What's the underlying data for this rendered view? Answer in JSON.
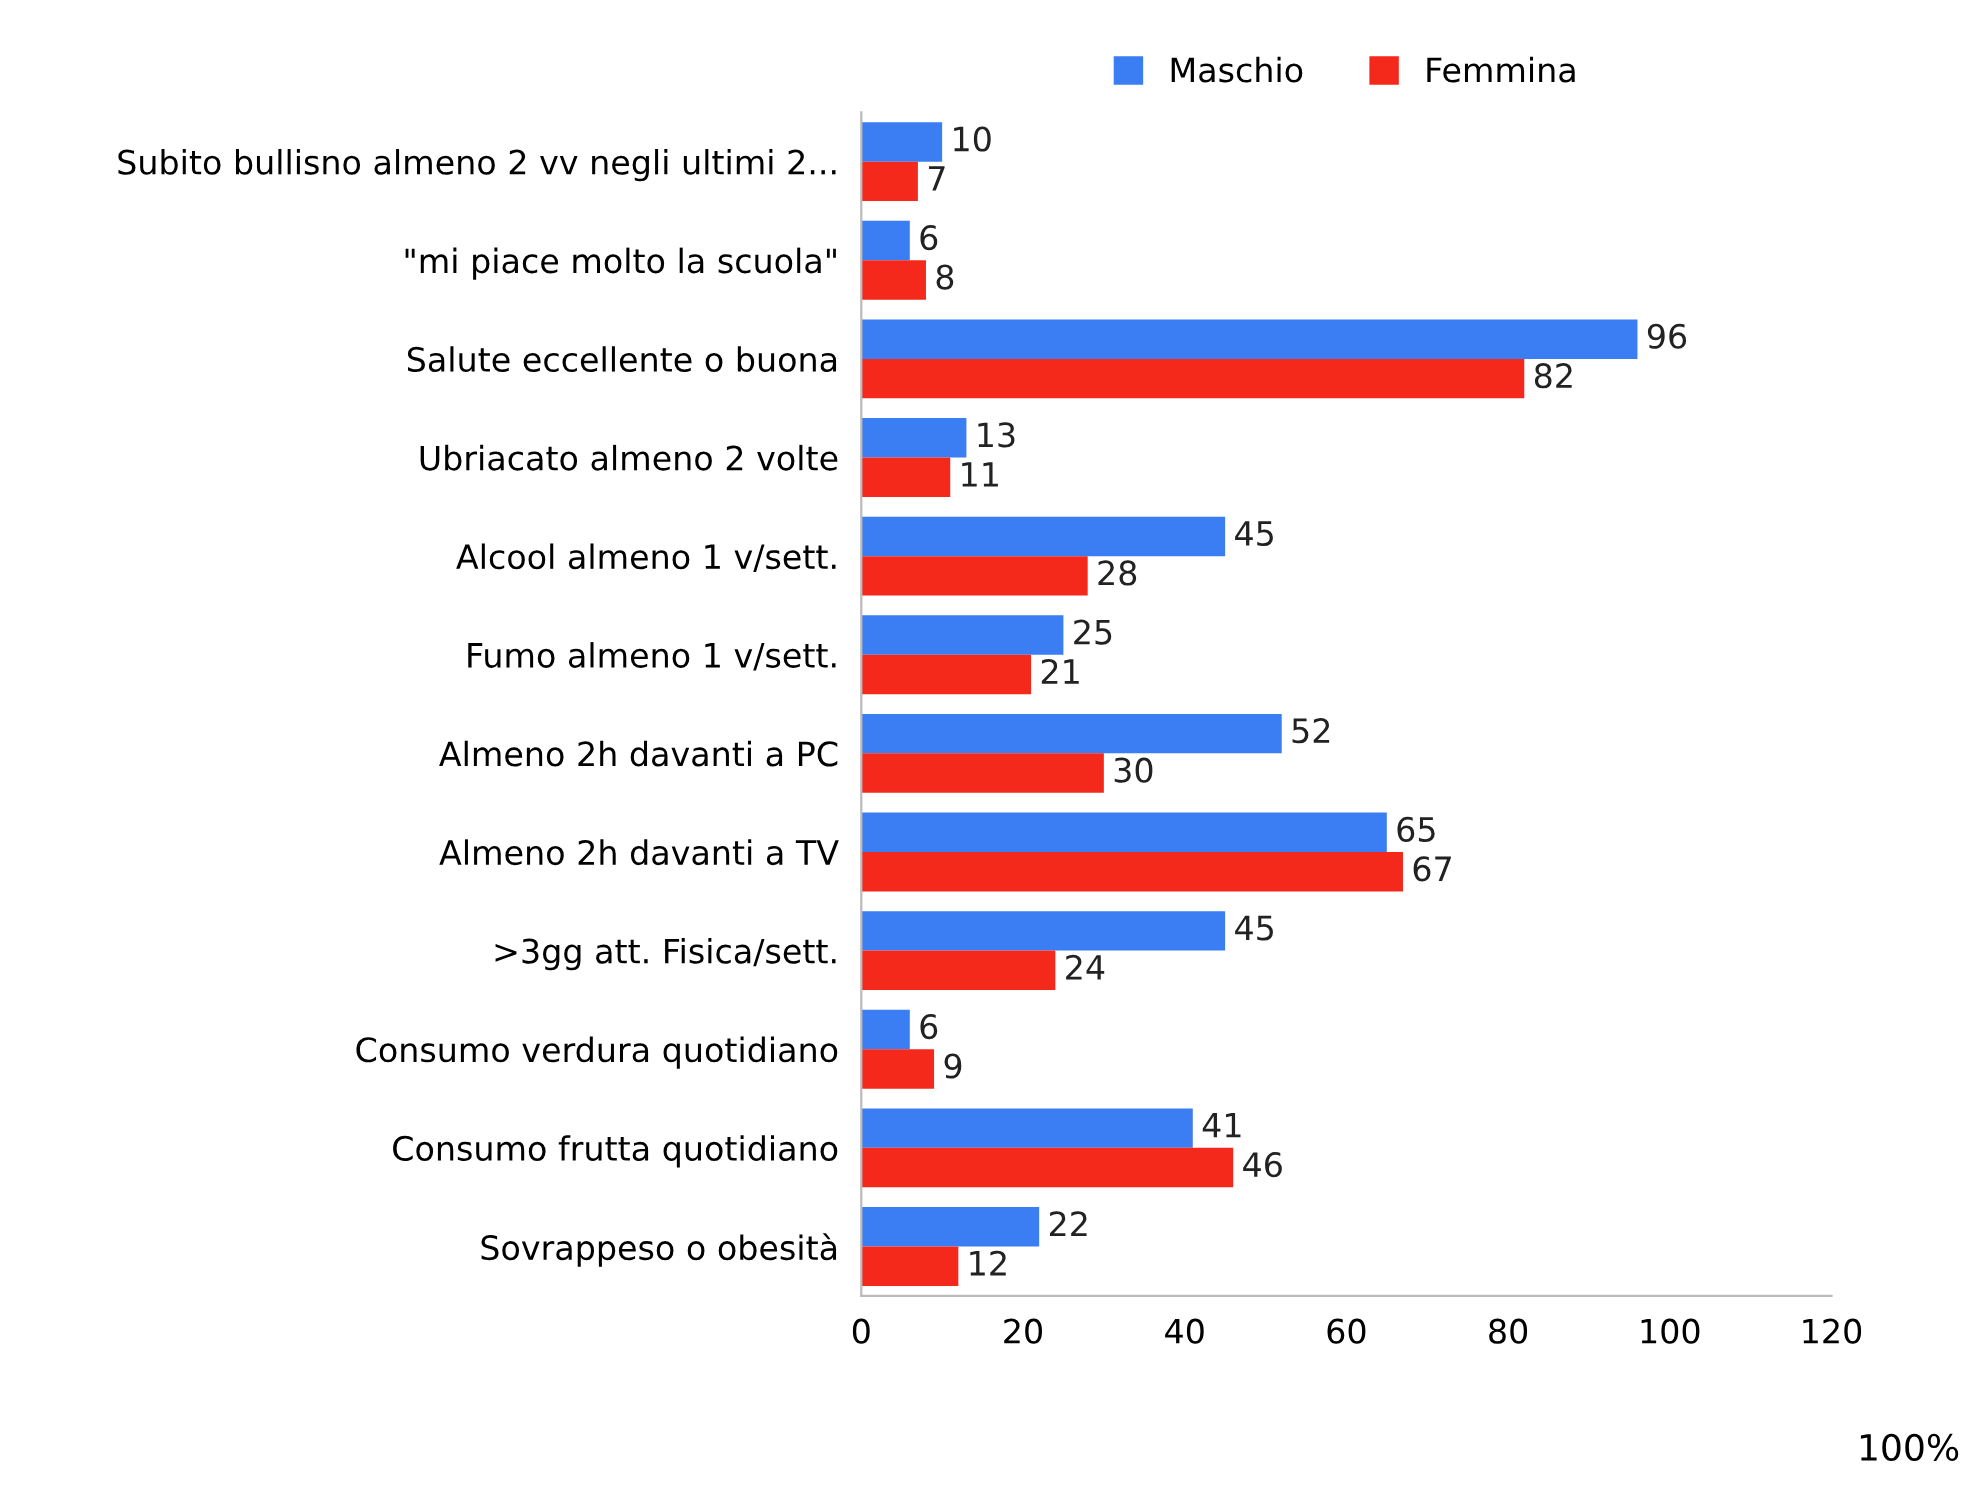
{
  "chart_data": {
    "type": "bar",
    "orientation": "horizontal",
    "categories": [
      "Subito bullisno almeno 2 vv negli ultimi 2...",
      "\"mi piace molto la scuola\"",
      "Salute eccellente o buona",
      "Ubriacato almeno 2 volte",
      "Alcool almeno 1 v/sett.",
      "Fumo almeno 1 v/sett.",
      "Almeno 2h davanti a PC",
      "Almeno 2h davanti a TV",
      ">3gg att. Fisica/sett.",
      "Consumo verdura quotidiano",
      "Consumo frutta quotidiano",
      "Sovrappeso o obesità"
    ],
    "series": [
      {
        "name": "Maschio",
        "color": "#3b7df2",
        "values": [
          10,
          6,
          96,
          13,
          45,
          25,
          52,
          65,
          45,
          6,
          41,
          22
        ]
      },
      {
        "name": "Femmina",
        "color": "#f5281c",
        "values": [
          7,
          8,
          82,
          11,
          28,
          21,
          30,
          67,
          24,
          9,
          46,
          12
        ]
      }
    ],
    "xlim": [
      0,
      120
    ],
    "xticks": [
      0,
      20,
      40,
      60,
      80,
      100,
      120
    ],
    "grid": false,
    "legend": "top",
    "data_labels": true,
    "annotations": [
      "100%"
    ]
  }
}
